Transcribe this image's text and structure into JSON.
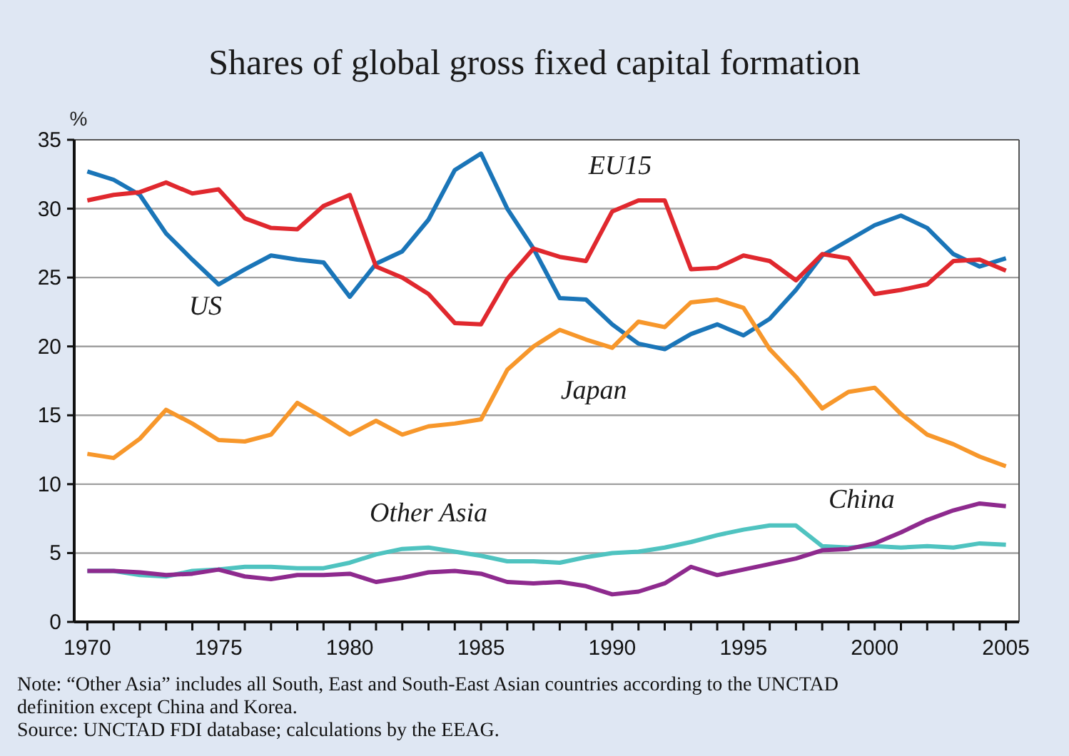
{
  "chart_data": {
    "type": "line",
    "title": "Shares of global gross fixed capital formation",
    "ylabel": "%",
    "x": [
      1970,
      1971,
      1972,
      1973,
      1974,
      1975,
      1976,
      1977,
      1978,
      1979,
      1980,
      1981,
      1982,
      1983,
      1984,
      1985,
      1986,
      1987,
      1988,
      1989,
      1990,
      1991,
      1992,
      1993,
      1994,
      1995,
      1996,
      1997,
      1998,
      1999,
      2000,
      2001,
      2002,
      2003,
      2004,
      2005
    ],
    "series": [
      {
        "name": "US",
        "color": "#1a75b8",
        "values": [
          32.7,
          32.1,
          31.0,
          28.2,
          26.3,
          24.5,
          25.6,
          26.6,
          26.3,
          26.1,
          23.6,
          26.0,
          26.9,
          29.2,
          32.8,
          34.0,
          30.0,
          27.1,
          23.5,
          23.4,
          21.6,
          20.2,
          19.8,
          20.9,
          21.6,
          20.8,
          22.0,
          24.1,
          26.6,
          27.7,
          28.8,
          29.5,
          28.6,
          26.7,
          25.8,
          26.4
        ]
      },
      {
        "name": "EU15",
        "color": "#e0282e",
        "values": [
          30.6,
          31.0,
          31.2,
          31.9,
          31.1,
          31.4,
          29.3,
          28.6,
          28.5,
          30.2,
          31.0,
          25.8,
          25.0,
          23.8,
          21.7,
          21.6,
          24.9,
          27.1,
          26.5,
          26.2,
          29.8,
          30.6,
          30.6,
          25.6,
          25.7,
          26.6,
          26.2,
          24.8,
          26.7,
          26.4,
          23.8,
          24.1,
          24.5,
          26.2,
          26.3,
          25.5
        ]
      },
      {
        "name": "Japan",
        "color": "#f7972b",
        "values": [
          12.2,
          11.9,
          13.3,
          15.4,
          14.4,
          13.2,
          13.1,
          13.6,
          15.9,
          14.8,
          13.6,
          14.6,
          13.6,
          14.2,
          14.4,
          14.7,
          18.3,
          20.0,
          21.2,
          20.5,
          19.9,
          21.8,
          21.4,
          23.2,
          23.4,
          22.8,
          19.8,
          17.8,
          15.5,
          16.7,
          17.0,
          15.1,
          13.6,
          12.9,
          12.0,
          11.3
        ]
      },
      {
        "name": "Other Asia",
        "color": "#4fc3c0",
        "values": [
          3.7,
          3.7,
          3.4,
          3.3,
          3.7,
          3.8,
          4.0,
          4.0,
          3.9,
          3.9,
          4.3,
          4.9,
          5.3,
          5.4,
          5.1,
          4.8,
          4.4,
          4.4,
          4.3,
          4.7,
          5.0,
          5.1,
          5.4,
          5.8,
          6.3,
          6.7,
          7.0,
          7.0,
          5.5,
          5.4,
          5.5,
          5.4,
          5.5,
          5.4,
          5.7,
          5.6
        ]
      },
      {
        "name": "China",
        "color": "#8e2a8e",
        "values": [
          3.7,
          3.7,
          3.6,
          3.4,
          3.5,
          3.8,
          3.3,
          3.1,
          3.4,
          3.4,
          3.5,
          2.9,
          3.2,
          3.6,
          3.7,
          3.5,
          2.9,
          2.8,
          2.9,
          2.6,
          2.0,
          2.2,
          2.8,
          4.0,
          3.4,
          3.8,
          4.2,
          4.6,
          5.2,
          5.3,
          5.7,
          6.5,
          7.4,
          8.1,
          8.6,
          8.4
        ]
      }
    ],
    "xlim": [
      1969.5,
      2005.5
    ],
    "xticks": [
      1970,
      {
        "value": 1971,
        "label": null
      },
      {
        "value": 1972,
        "label": null
      },
      {
        "value": 1973,
        "label": null
      },
      {
        "value": 1974,
        "label": null
      },
      1975,
      {
        "value": 1976,
        "label": null
      },
      {
        "value": 1977,
        "label": null
      },
      {
        "value": 1978,
        "label": null
      },
      {
        "value": 1979,
        "label": null
      },
      1980,
      {
        "value": 1981,
        "label": null
      },
      {
        "value": 1982,
        "label": null
      },
      {
        "value": 1983,
        "label": null
      },
      {
        "value": 1984,
        "label": null
      },
      1985,
      {
        "value": 1986,
        "label": null
      },
      {
        "value": 1987,
        "label": null
      },
      {
        "value": 1988,
        "label": null
      },
      {
        "value": 1989,
        "label": null
      },
      1990,
      {
        "value": 1991,
        "label": null
      },
      {
        "value": 1992,
        "label": null
      },
      {
        "value": 1993,
        "label": null
      },
      {
        "value": 1994,
        "label": null
      },
      1995,
      {
        "value": 1996,
        "label": null
      },
      {
        "value": 1997,
        "label": null
      },
      {
        "value": 1998,
        "label": null
      },
      {
        "value": 1999,
        "label": null
      },
      2000,
      {
        "value": 2001,
        "label": null
      },
      {
        "value": 2002,
        "label": null
      },
      {
        "value": 2003,
        "label": null
      },
      {
        "value": 2004,
        "label": null
      },
      2005
    ],
    "ylim": [
      0,
      35
    ],
    "yticks": [
      0,
      5,
      10,
      15,
      20,
      25,
      30,
      35
    ],
    "grid": "y",
    "marker": "none",
    "line_style": "solid",
    "annotations": [
      "Note: “Other Asia” includes all South, East and South-East Asian countries according to the UNCTAD definition except China and Korea.",
      "Source: UNCTAD FDI database; calculations by the EEAG."
    ]
  }
}
